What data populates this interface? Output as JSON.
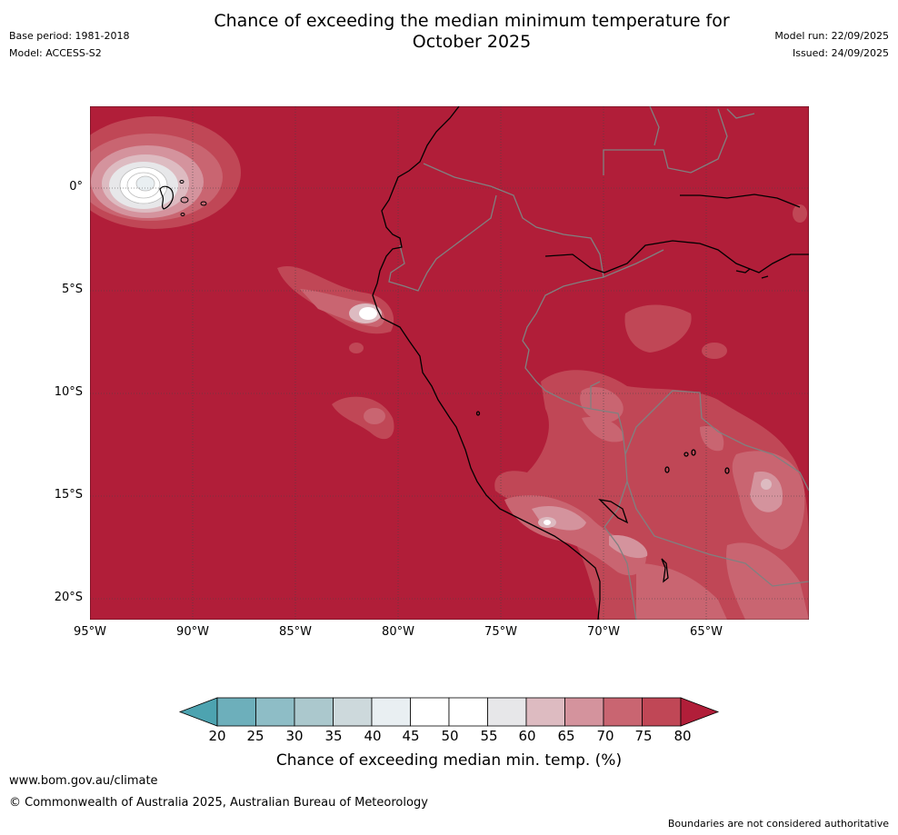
{
  "header": {
    "base_period": "Base period: 1981-2018",
    "model": "Model: ACCESS-S2",
    "title_line1": "Chance of exceeding the median minimum temperature for",
    "title_line2": "October 2025",
    "model_run": "Model run: 22/09/2025",
    "issued": "Issued: 24/09/2025"
  },
  "map": {
    "lat_labels": [
      "0°",
      "5°S",
      "10°S",
      "15°S",
      "20°S"
    ],
    "lon_labels": [
      "95°W",
      "90°W",
      "85°W",
      "80°W",
      "75°W",
      "70°W",
      "65°W"
    ],
    "lat_values": [
      0,
      -5,
      -10,
      -15,
      -20
    ],
    "lon_values": [
      -95,
      -90,
      -85,
      -80,
      -75,
      -70,
      -65
    ],
    "extent": {
      "lon_min": -95,
      "lon_max": -60,
      "lat_min": -21,
      "lat_max": 4
    },
    "background_category": "80+"
  },
  "colorbar": {
    "ticks": [
      "20",
      "25",
      "30",
      "35",
      "40",
      "45",
      "50",
      "55",
      "60",
      "65",
      "70",
      "75",
      "80"
    ],
    "colors": [
      "#4da3b0",
      "#6dafbb",
      "#8ebdc6",
      "#abc8cd",
      "#cdd9dc",
      "#e9eff2",
      "#ffffff",
      "#ffffff",
      "#e7e7e9",
      "#ddbbc1",
      "#d4939d",
      "#c96571",
      "#c04756",
      "#b11e39"
    ],
    "label": "Chance of exceeding median min. temp. (%)"
  },
  "footer": {
    "url": "www.bom.gov.au/climate",
    "copyright": "© Commonwealth of Australia 2025, Australian Bureau of Meteorology",
    "disclaimer": "Boundaries are not considered authoritative"
  }
}
